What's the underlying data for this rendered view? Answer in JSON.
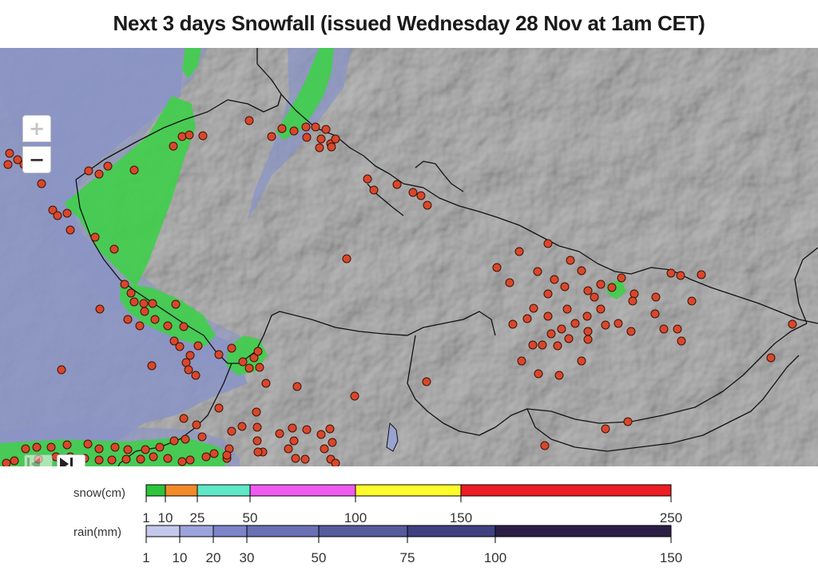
{
  "title": "Next 3 days Snowfall (issued Wednesday 28 Nov at 1am CET)",
  "map": {
    "zoom_in_label": "+",
    "zoom_out_label": "−",
    "station_marker_color": "#d9472b",
    "snow_shading_color": "#3fcf4a",
    "rain_shading_color": "#8a94c6",
    "terrain_color": "#b9b9b9",
    "controls": {
      "prev_icon": "skip-back-icon",
      "next_icon": "skip-forward-icon"
    }
  },
  "legend": {
    "snow": {
      "label": "snow(cm)",
      "ticks": [
        "1",
        "10",
        "25",
        "50",
        "100",
        "150",
        "250"
      ],
      "colors": [
        "#2ec43c",
        "#f28a2a",
        "#5ee8c8",
        "#f05af0",
        "#fcfc2c",
        "#ee1c24"
      ]
    },
    "rain": {
      "label": "rain(mm)",
      "ticks": [
        "1",
        "10",
        "20",
        "30",
        "50",
        "75",
        "100",
        "150"
      ],
      "colors": [
        "#c4c8ec",
        "#9ca3dc",
        "#7d84c8",
        "#6a70b4",
        "#555b9c",
        "#3e4080",
        "#2b1f48"
      ]
    }
  }
}
